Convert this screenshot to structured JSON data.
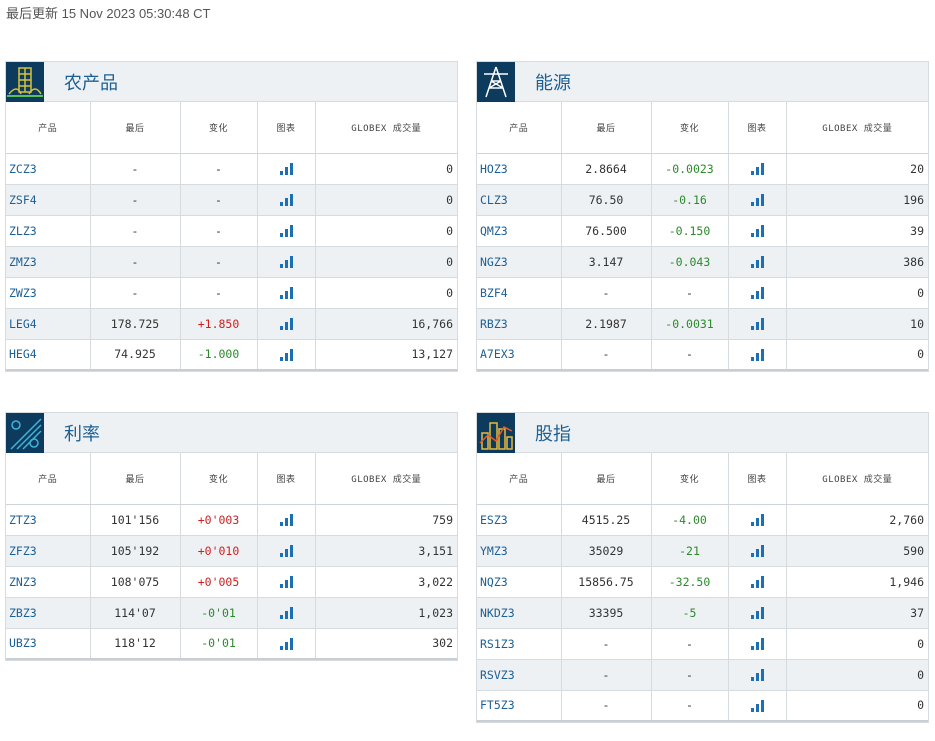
{
  "updated": "最后更新 15 Nov 2023 05:30:48 CT",
  "headers": {
    "product": "产品",
    "last": "最后",
    "change": "变化",
    "chart": "图表",
    "volume": "GLOBEX 成交量"
  },
  "panels": {
    "ag": {
      "title": "农产品",
      "icon": "wheat-icon",
      "rows": [
        {
          "sym": "ZCZ3",
          "last": "-",
          "chg": "-",
          "vol": "0"
        },
        {
          "sym": "ZSF4",
          "last": "-",
          "chg": "-",
          "vol": "0"
        },
        {
          "sym": "ZLZ3",
          "last": "-",
          "chg": "-",
          "vol": "0"
        },
        {
          "sym": "ZMZ3",
          "last": "-",
          "chg": "-",
          "vol": "0"
        },
        {
          "sym": "ZWZ3",
          "last": "-",
          "chg": "-",
          "vol": "0"
        },
        {
          "sym": "LEG4",
          "last": "178.725",
          "chg": "+1.850",
          "vol": "16,766",
          "dir": "pos"
        },
        {
          "sym": "HEG4",
          "last": "74.925",
          "chg": "-1.000",
          "vol": "13,127",
          "dir": "neg"
        }
      ]
    },
    "energy": {
      "title": "能源",
      "icon": "oil-derrick-icon",
      "rows": [
        {
          "sym": "HOZ3",
          "last": "2.8664",
          "chg": "-0.0023",
          "vol": "20",
          "dir": "neg"
        },
        {
          "sym": "CLZ3",
          "last": "76.50",
          "chg": "-0.16",
          "vol": "196",
          "dir": "neg"
        },
        {
          "sym": "QMZ3",
          "last": "76.500",
          "chg": "-0.150",
          "vol": "39",
          "dir": "neg"
        },
        {
          "sym": "NGZ3",
          "last": "3.147",
          "chg": "-0.043",
          "vol": "386",
          "dir": "neg"
        },
        {
          "sym": "BZF4",
          "last": "-",
          "chg": "-",
          "vol": "0"
        },
        {
          "sym": "RBZ3",
          "last": "2.1987",
          "chg": "-0.0031",
          "vol": "10",
          "dir": "neg"
        },
        {
          "sym": "A7EX3",
          "last": "-",
          "chg": "-",
          "vol": "0"
        }
      ]
    },
    "rates": {
      "title": "利率",
      "icon": "interest-rate-icon",
      "rows": [
        {
          "sym": "ZTZ3",
          "last": "101'156",
          "chg": "+0'003",
          "vol": "759",
          "dir": "pos"
        },
        {
          "sym": "ZFZ3",
          "last": "105'192",
          "chg": "+0'010",
          "vol": "3,151",
          "dir": "pos"
        },
        {
          "sym": "ZNZ3",
          "last": "108'075",
          "chg": "+0'005",
          "vol": "3,022",
          "dir": "pos"
        },
        {
          "sym": "ZBZ3",
          "last": "114'07",
          "chg": "-0'01",
          "vol": "1,023",
          "dir": "neg"
        },
        {
          "sym": "UBZ3",
          "last": "118'12",
          "chg": "-0'01",
          "vol": "302",
          "dir": "neg"
        }
      ]
    },
    "equity": {
      "title": "股指",
      "icon": "skyline-icon",
      "rows": [
        {
          "sym": "ESZ3",
          "last": "4515.25",
          "chg": "-4.00",
          "vol": "2,760",
          "dir": "neg"
        },
        {
          "sym": "YMZ3",
          "last": "35029",
          "chg": "-21",
          "vol": "590",
          "dir": "neg"
        },
        {
          "sym": "NQZ3",
          "last": "15856.75",
          "chg": "-32.50",
          "vol": "1,946",
          "dir": "neg"
        },
        {
          "sym": "NKDZ3",
          "last": "33395",
          "chg": "-5",
          "vol": "37",
          "dir": "neg"
        },
        {
          "sym": "RS1Z3",
          "last": "-",
          "chg": "-",
          "vol": "0"
        },
        {
          "sym": "RSVZ3",
          "last": "-",
          "chg": "-",
          "vol": "0"
        },
        {
          "sym": "FT5Z3",
          "last": "-",
          "chg": "-",
          "vol": "0"
        }
      ]
    }
  },
  "colors": {
    "link": "#1c5f94",
    "up": "#d11f1f",
    "down": "#2b8a2b",
    "header_bg": "#eef1f4",
    "icon_bg": "#0d3b5e"
  }
}
